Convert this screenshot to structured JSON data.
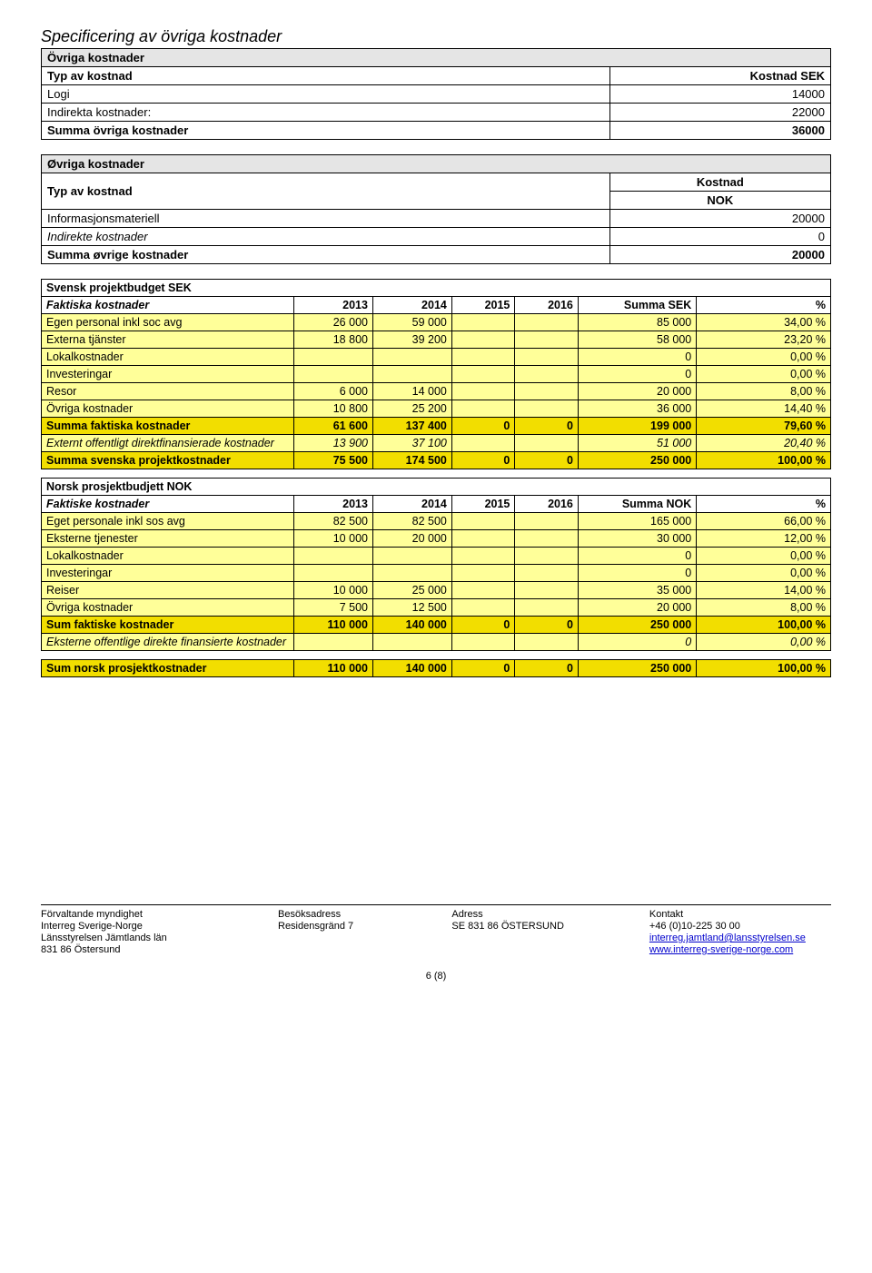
{
  "heading": "Specificering av övriga kostnader",
  "table1": {
    "title": "Övriga kostnader",
    "col1": "Typ av kostnad",
    "col2": "Kostnad SEK",
    "rows": [
      {
        "label": "Logi",
        "value": "14000"
      },
      {
        "label": "Indirekta kostnader:",
        "value": "22000"
      }
    ],
    "sum_label": "Summa övriga kostnader",
    "sum_value": "36000"
  },
  "table2": {
    "title": "Øvriga kostnader",
    "col1": "Typ av kostnad",
    "col2a": "Kostnad",
    "col2b": "NOK",
    "rows": [
      {
        "label": "Informasjonsmateriell",
        "value": "20000"
      },
      {
        "label": "Indirekte kostnader",
        "value": "0"
      }
    ],
    "sum_label": "Summa øvrige kostnader",
    "sum_value": "20000"
  },
  "budget": {
    "sek": {
      "title": "Svensk projektbudget SEK",
      "header": [
        "Faktiska kostnader",
        "2013",
        "2014",
        "2015",
        "2016",
        "Summa SEK",
        "%"
      ],
      "rows": [
        {
          "cells": [
            "Egen personal inkl soc avg",
            "26 000",
            "59 000",
            "",
            "",
            "85 000",
            "34,00 %"
          ],
          "cls": "yellow"
        },
        {
          "cells": [
            "Externa tjänster",
            "18 800",
            "39 200",
            "",
            "",
            "58 000",
            "23,20 %"
          ],
          "cls": "yellow"
        },
        {
          "cells": [
            "Lokalkostnader",
            "",
            "",
            "",
            "",
            "0",
            "0,00 %"
          ],
          "cls": "yellow"
        },
        {
          "cells": [
            "Investeringar",
            "",
            "",
            "",
            "",
            "0",
            "0,00 %"
          ],
          "cls": "yellow"
        },
        {
          "cells": [
            "Resor",
            "6 000",
            "14 000",
            "",
            "",
            "20 000",
            "8,00 %"
          ],
          "cls": "yellow"
        },
        {
          "cells": [
            "Övriga kostnader",
            "10 800",
            "25 200",
            "",
            "",
            "36 000",
            "14,40 %"
          ],
          "cls": "yellow"
        },
        {
          "cells": [
            "Summa faktiska kostnader",
            "61 600",
            "137 400",
            "0",
            "0",
            "199 000",
            "79,60 %"
          ],
          "cls": "yellow-sum"
        },
        {
          "cells": [
            "Externt offentligt direktfinansierade kostnader",
            "13 900",
            "37 100",
            "",
            "",
            "51 000",
            "20,40 %"
          ],
          "cls": "yellow italic"
        },
        {
          "cells": [
            "Summa svenska projektkostnader",
            "75 500",
            "174 500",
            "0",
            "0",
            "250 000",
            "100,00 %"
          ],
          "cls": "yellow-sum"
        }
      ]
    },
    "nok": {
      "title": "Norsk prosjektbudjett NOK",
      "header": [
        "Faktiske kostnader",
        "2013",
        "2014",
        "2015",
        "2016",
        "Summa NOK",
        "%"
      ],
      "rows": [
        {
          "cells": [
            "Eget personale inkl sos avg",
            "82 500",
            "82 500",
            "",
            "",
            "165 000",
            "66,00 %"
          ],
          "cls": "yellow"
        },
        {
          "cells": [
            "Eksterne tjenester",
            "10 000",
            "20 000",
            "",
            "",
            "30 000",
            "12,00 %"
          ],
          "cls": "yellow"
        },
        {
          "cells": [
            "Lokalkostnader",
            "",
            "",
            "",
            "",
            "0",
            "0,00 %"
          ],
          "cls": "yellow"
        },
        {
          "cells": [
            "Investeringar",
            "",
            "",
            "",
            "",
            "0",
            "0,00 %"
          ],
          "cls": "yellow"
        },
        {
          "cells": [
            "Reiser",
            "10 000",
            "25 000",
            "",
            "",
            "35 000",
            "14,00 %"
          ],
          "cls": "yellow"
        },
        {
          "cells": [
            "Övriga kostnader",
            "7 500",
            "12 500",
            "",
            "",
            "20 000",
            "8,00 %"
          ],
          "cls": "yellow"
        },
        {
          "cells": [
            "Sum faktiske kostnader",
            "110 000",
            "140 000",
            "0",
            "0",
            "250 000",
            "100,00 %"
          ],
          "cls": "yellow-sum"
        },
        {
          "cells": [
            "Eksterne offentlige direkte finansierte kostnader",
            "",
            "",
            "",
            "",
            "0",
            "0,00 %"
          ],
          "cls": "yellow italic"
        },
        {
          "cells": [
            "Sum norsk prosjektkostnader",
            "110 000",
            "140 000",
            "0",
            "0",
            "250 000",
            "100,00 %"
          ],
          "cls": "yellow-sum"
        }
      ]
    },
    "colwidths": [
      "32%",
      "10%",
      "10%",
      "8%",
      "8%",
      "15%",
      "17%"
    ]
  },
  "footer": {
    "col_headers": [
      "Förvaltande myndighet",
      "Besöksadress",
      "Adress",
      "Kontakt"
    ],
    "rows": [
      [
        "Interreg Sverige-Norge",
        "Residensgränd 7",
        "SE 831 86 ÖSTERSUND",
        "+46 (0)10-225 30 00"
      ],
      [
        "Länsstyrelsen Jämtlands län",
        "",
        "",
        "interreg.jamtland@lansstyrelsen.se"
      ],
      [
        "831 86 Östersund",
        "",
        "",
        "www.interreg-sverige-norge.com"
      ]
    ],
    "page": "6 (8)"
  }
}
